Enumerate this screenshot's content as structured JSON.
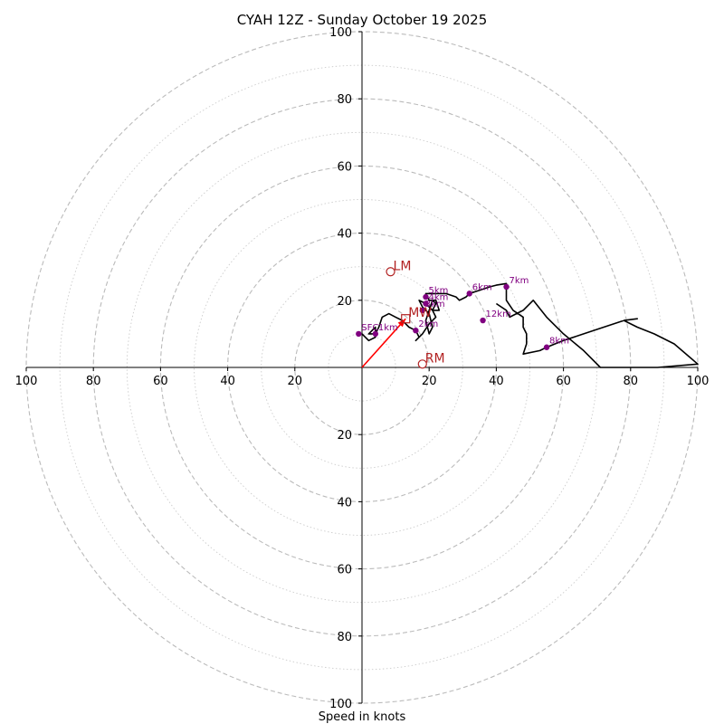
{
  "chart_data": {
    "type": "hodograph",
    "title": "CYAH 12Z - Sunday October 19 2025",
    "xlabel": "Speed in knots",
    "axis_range": [
      -100,
      100
    ],
    "ring_step": 20,
    "ring_minor_step": 10,
    "tick_labels": {
      "x": [
        "100",
        "80",
        "60",
        "40",
        "20",
        "20",
        "40",
        "60",
        "80",
        "100"
      ],
      "y": [
        "100",
        "80",
        "60",
        "40",
        "20",
        "20",
        "40",
        "60",
        "80",
        "100"
      ]
    },
    "hodograph_trace": [
      [
        0,
        10
      ],
      [
        2,
        8
      ],
      [
        4,
        9
      ],
      [
        4,
        10
      ],
      [
        4,
        12
      ],
      [
        3,
        11
      ],
      [
        2,
        10
      ],
      [
        4,
        10
      ],
      [
        5,
        12
      ],
      [
        6,
        15
      ],
      [
        8,
        16
      ],
      [
        10,
        15
      ],
      [
        12,
        14
      ],
      [
        14,
        12
      ],
      [
        16,
        11
      ],
      [
        17,
        9
      ],
      [
        16,
        8
      ],
      [
        18,
        10
      ],
      [
        20,
        13
      ],
      [
        22,
        15
      ],
      [
        21,
        17
      ],
      [
        19,
        19
      ],
      [
        17,
        20
      ],
      [
        18,
        18
      ],
      [
        20,
        16
      ],
      [
        21,
        12
      ],
      [
        20,
        10
      ],
      [
        19,
        14
      ],
      [
        20,
        17
      ],
      [
        21,
        20
      ],
      [
        22,
        19
      ],
      [
        21,
        17
      ],
      [
        23,
        17
      ],
      [
        22,
        20
      ],
      [
        20,
        20
      ],
      [
        19,
        22
      ],
      [
        22,
        22
      ],
      [
        25,
        22
      ],
      [
        28,
        21
      ],
      [
        29,
        20
      ],
      [
        31,
        21
      ],
      [
        32,
        22
      ],
      [
        35,
        23
      ],
      [
        38,
        24
      ],
      [
        40,
        24.5
      ],
      [
        43,
        25
      ],
      [
        43,
        23
      ],
      [
        43,
        20
      ],
      [
        45,
        17
      ],
      [
        48,
        15
      ],
      [
        48,
        12
      ],
      [
        49,
        10
      ],
      [
        49,
        7
      ],
      [
        48,
        4
      ],
      [
        53,
        5
      ],
      [
        55,
        6
      ],
      [
        60,
        8
      ],
      [
        66,
        10
      ],
      [
        72,
        12
      ],
      [
        78,
        14
      ],
      [
        82,
        14.5
      ],
      [
        78,
        14
      ],
      [
        82,
        12
      ],
      [
        87,
        10
      ],
      [
        93,
        7
      ],
      [
        100,
        1
      ],
      [
        88,
        0
      ],
      [
        71,
        0
      ],
      [
        66,
        5
      ],
      [
        60,
        10
      ],
      [
        55,
        15
      ],
      [
        51,
        20
      ],
      [
        48,
        17
      ],
      [
        44,
        15
      ],
      [
        43,
        17
      ],
      [
        40,
        19
      ]
    ],
    "km_markers": [
      {
        "label": "SFC",
        "u": -1,
        "v": 10
      },
      {
        "label": "1km",
        "u": 4,
        "v": 10
      },
      {
        "label": "2km",
        "u": 16,
        "v": 11
      },
      {
        "label": "3km",
        "u": 18,
        "v": 17
      },
      {
        "label": "4km",
        "u": 19,
        "v": 19
      },
      {
        "label": "5km",
        "u": 19,
        "v": 21
      },
      {
        "label": "6km",
        "u": 32,
        "v": 22
      },
      {
        "label": "7km",
        "u": 43,
        "v": 24
      },
      {
        "label": "8km",
        "u": 55,
        "v": 6
      },
      {
        "label": "12km",
        "u": 36,
        "v": 14
      }
    ],
    "storm_motions": [
      {
        "label": "LM",
        "u": 8.5,
        "v": 28.5,
        "marker": "circle"
      },
      {
        "label": "MW",
        "u": 13,
        "v": 14.5,
        "marker": "square"
      },
      {
        "label": "RM",
        "u": 18,
        "v": 1,
        "marker": "circle"
      }
    ],
    "mean_wind_vector": {
      "u": 13,
      "v": 14.5
    },
    "colors": {
      "trace": "#000000",
      "km_marker": "#800080",
      "motion": "#b22222",
      "vector": "#ff0000",
      "ring": "#bbbbbb",
      "axis": "#000000"
    }
  }
}
